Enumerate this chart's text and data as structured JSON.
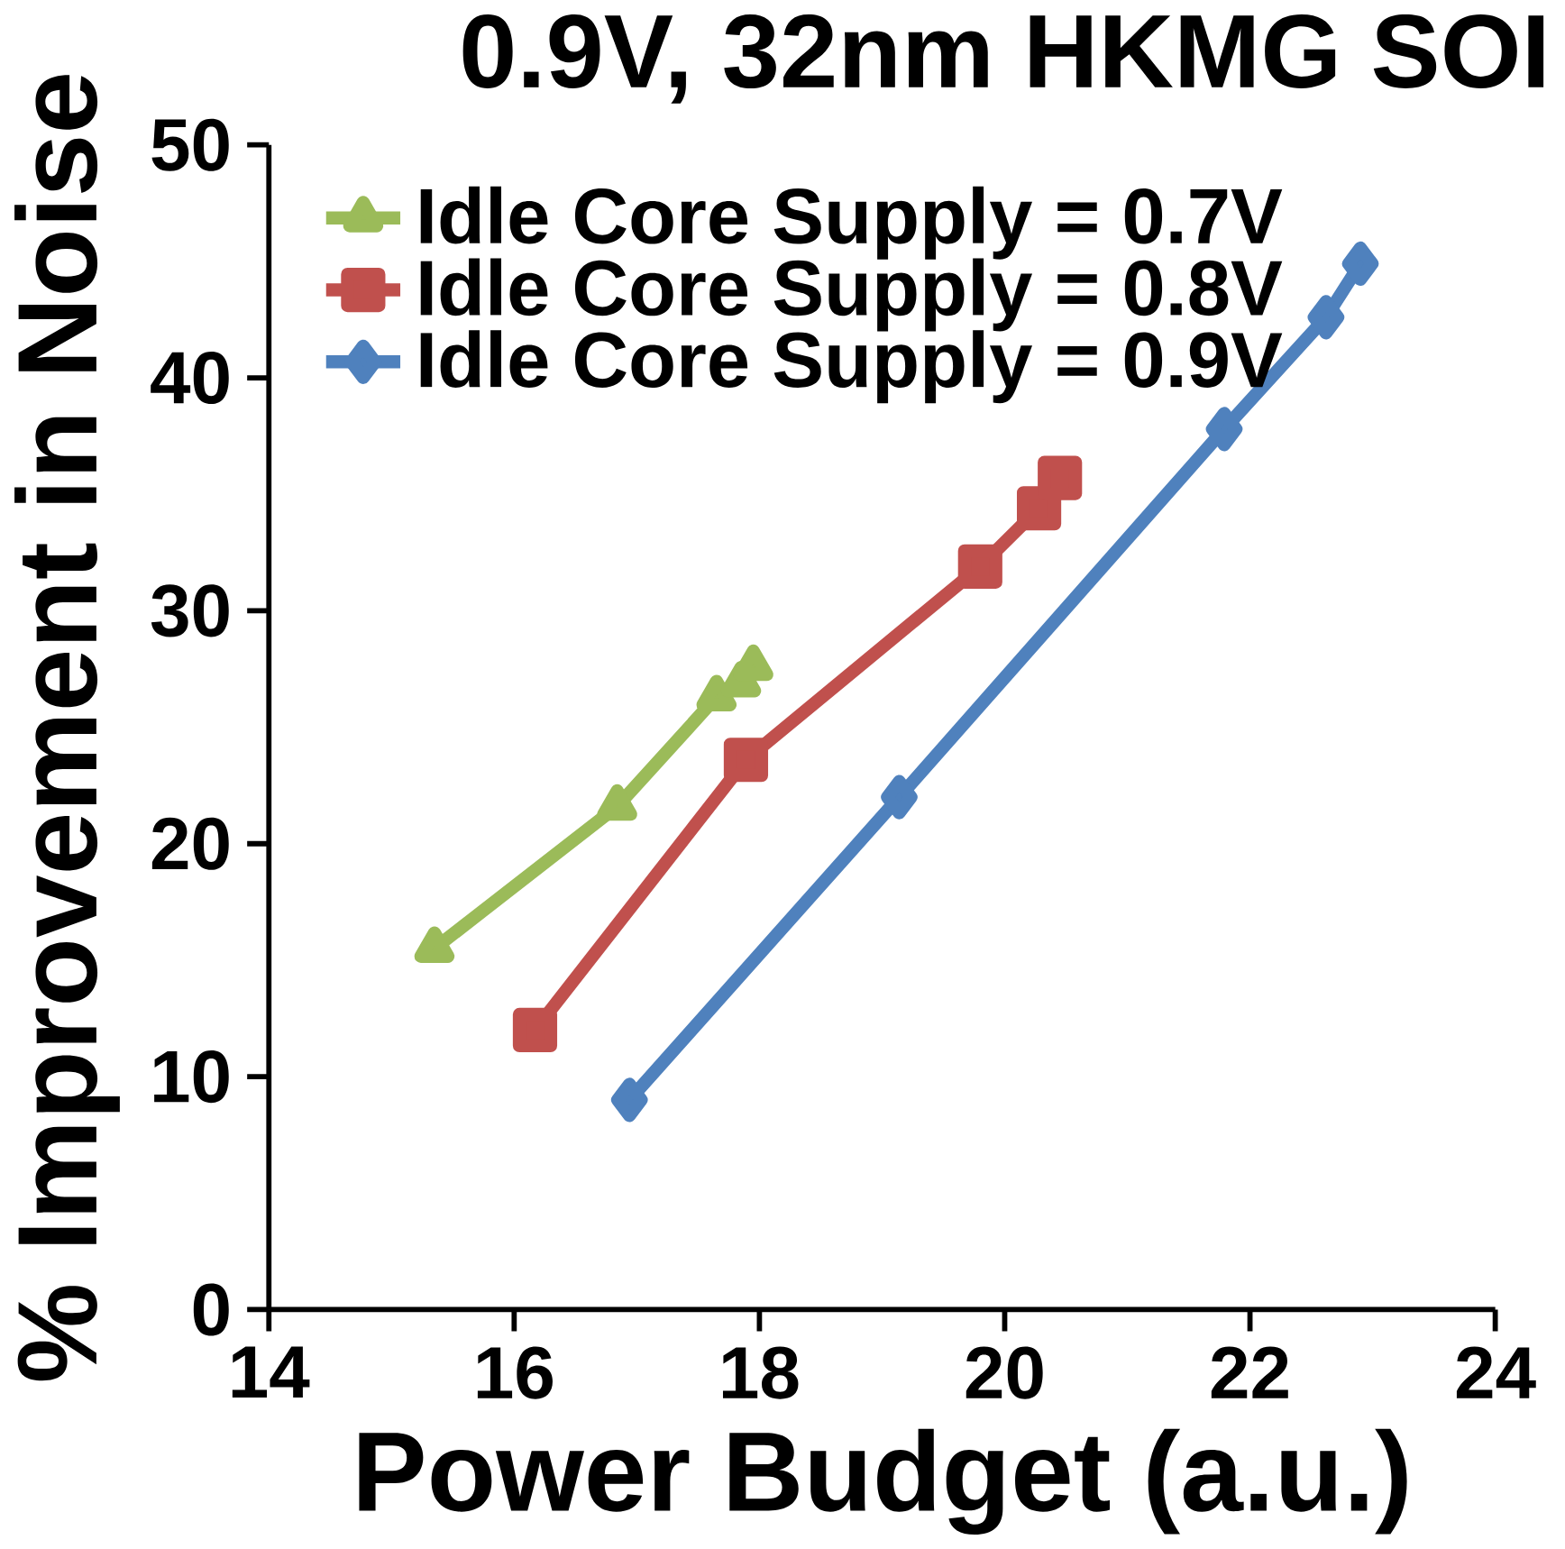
{
  "chart_data": {
    "type": "line",
    "title": "0.9V, 32nm HKMG SOI",
    "xlabel": "Power Budget (a.u.)",
    "ylabel": "% Improvement in Noise",
    "xlim": [
      14,
      24
    ],
    "xticks": [
      14,
      16,
      18,
      20,
      22,
      24
    ],
    "ylim": [
      0,
      50
    ],
    "yticks": [
      0,
      10,
      20,
      30,
      40,
      50
    ],
    "grid": false,
    "legend": "top left",
    "series": [
      {
        "name": "Idle Core Supply = 0.7V",
        "color": "#9bbb59",
        "marker": "triangle",
        "x": [
          15.35,
          16.84,
          17.65,
          17.85,
          17.95
        ],
        "values": [
          15.5,
          21.6,
          26.3,
          26.9,
          27.6
        ]
      },
      {
        "name": "Idle Core Supply = 0.8V",
        "color": "#c0504d",
        "marker": "square",
        "x": [
          16.17,
          17.89,
          19.8,
          20.28,
          20.45
        ],
        "values": [
          12.0,
          23.6,
          31.9,
          34.4,
          35.7
        ]
      },
      {
        "name": "Idle Core Supply = 0.9V",
        "color": "#4f81bd",
        "marker": "diamond",
        "x": [
          16.94,
          19.14,
          21.79,
          22.62,
          22.9
        ],
        "values": [
          9.0,
          22.0,
          37.8,
          42.6,
          44.9
        ]
      }
    ]
  }
}
